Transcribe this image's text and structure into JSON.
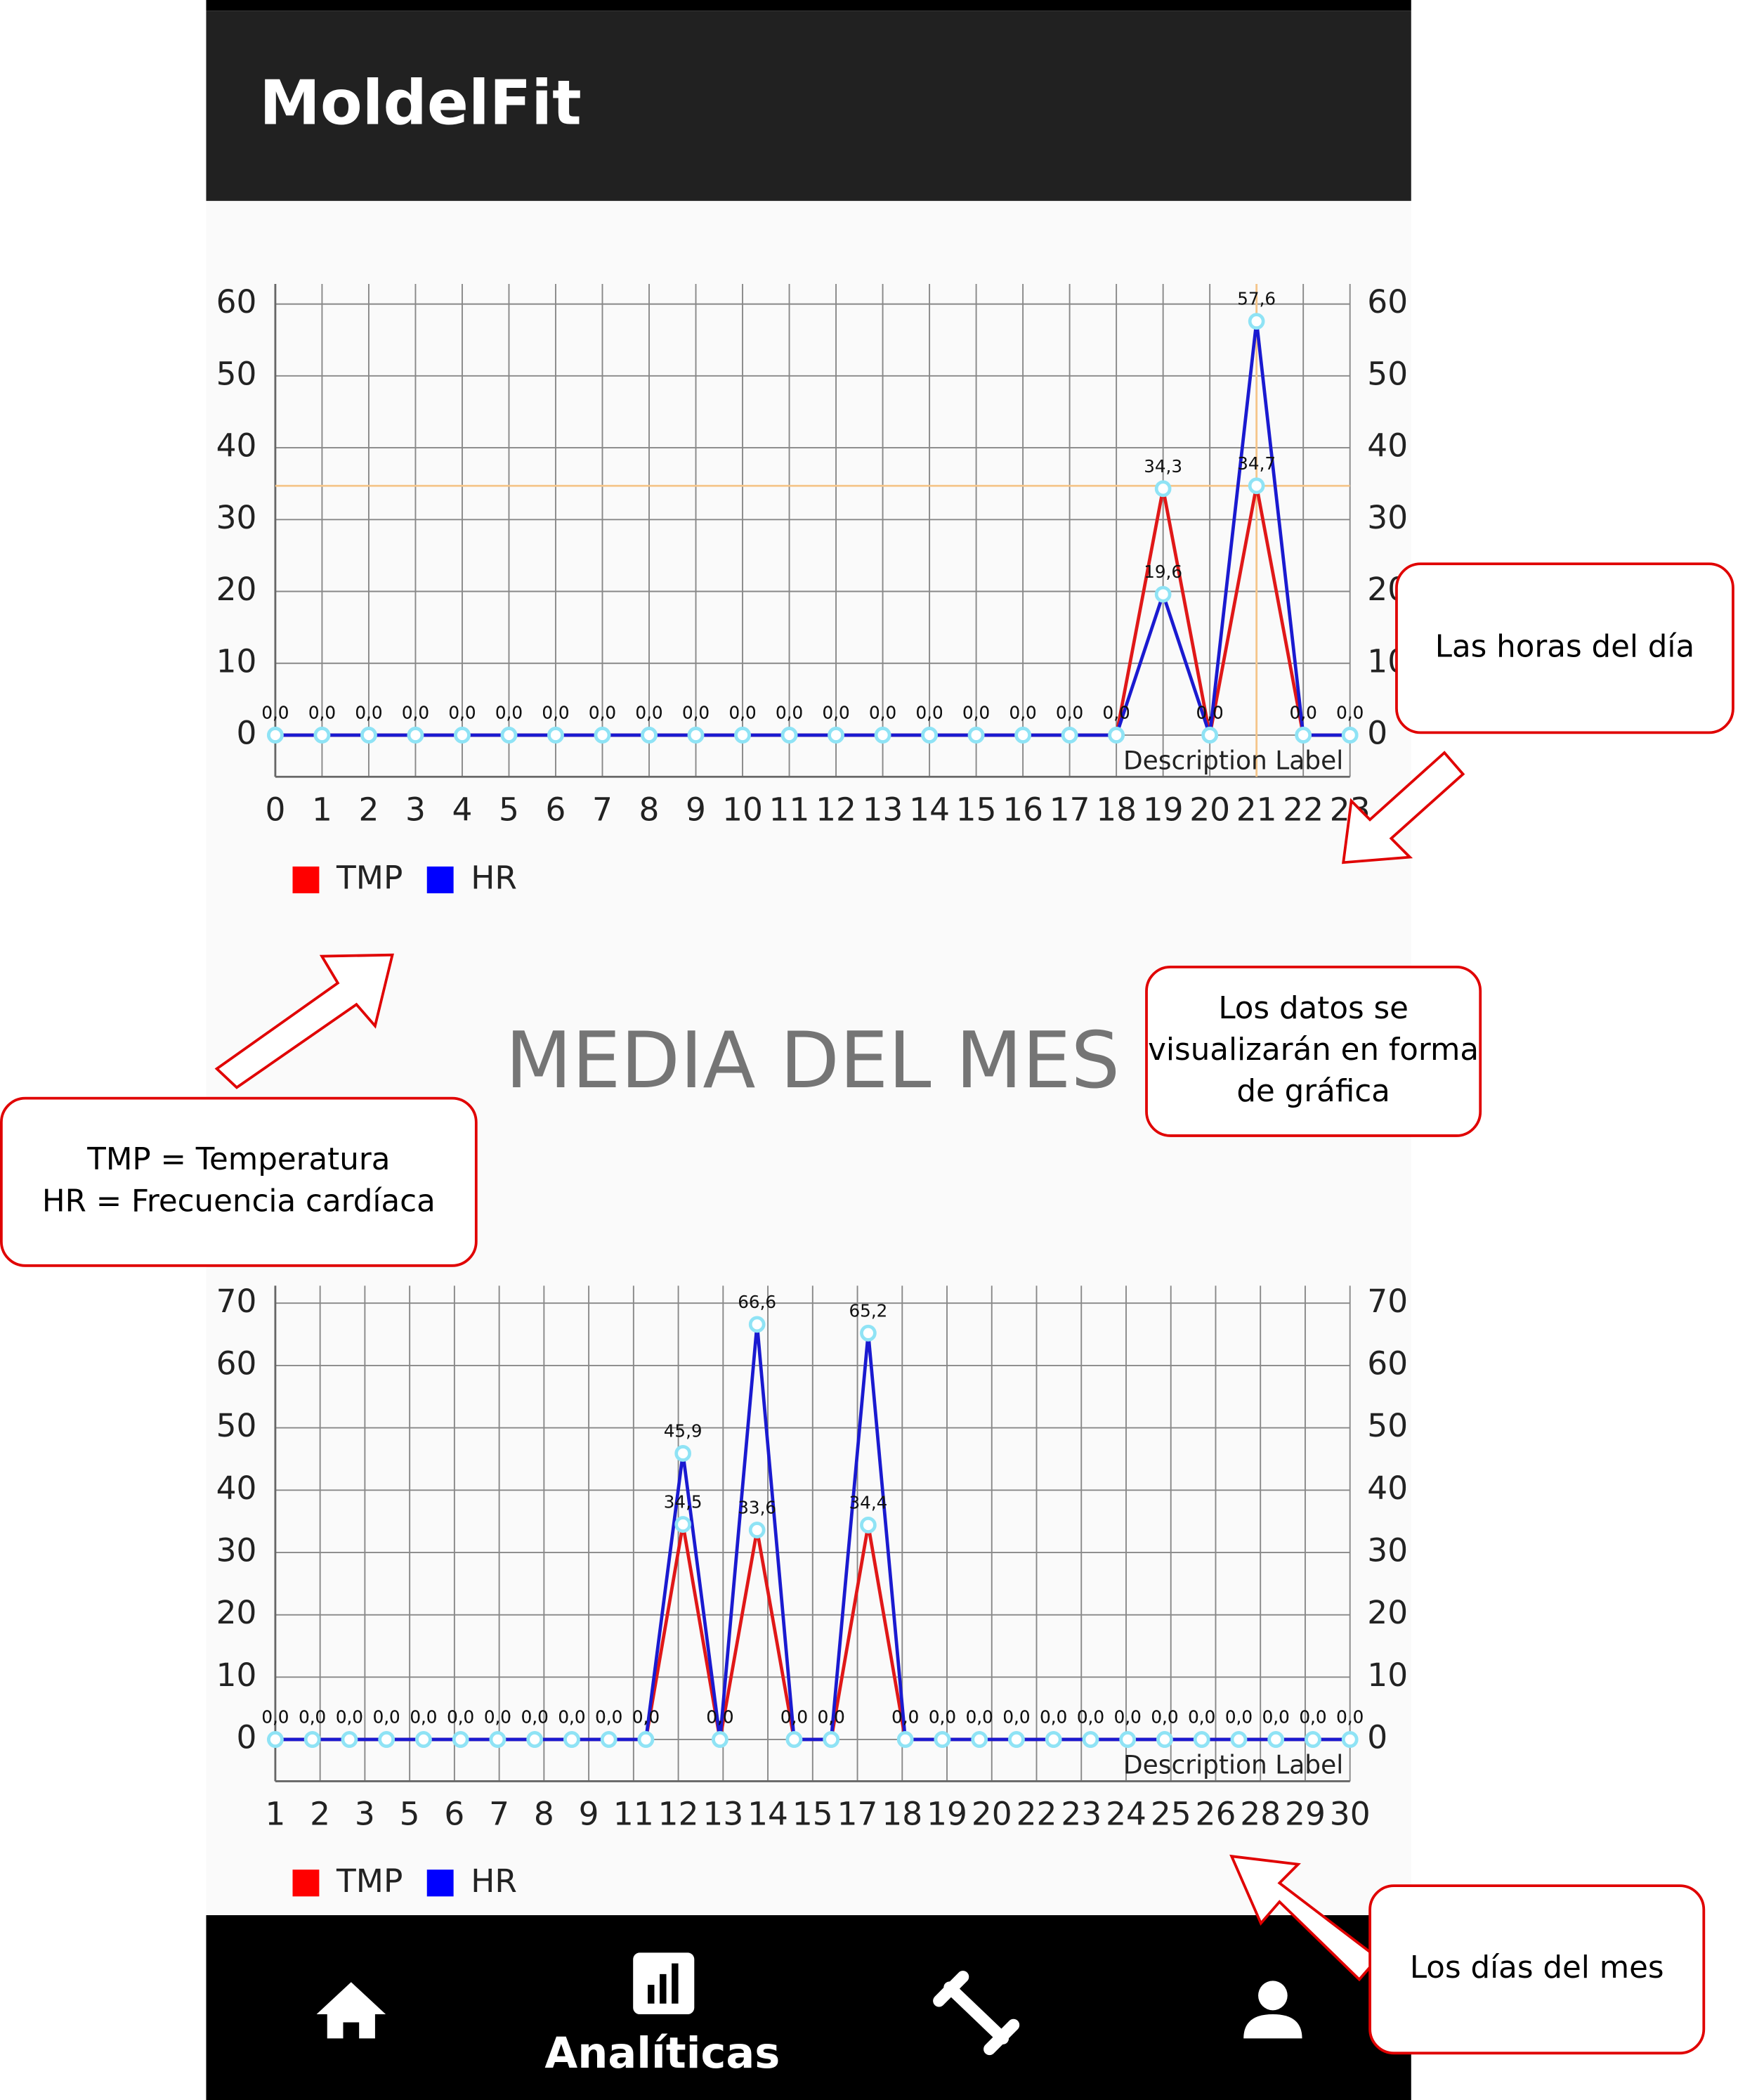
{
  "app_bar": {
    "title": "MoldelFit"
  },
  "section_title": "MEDIA DEL MES",
  "chart_data": [
    {
      "type": "line",
      "description": "Description Label",
      "xlim": [
        0,
        23
      ],
      "xticks": [
        0,
        1,
        2,
        3,
        4,
        5,
        6,
        7,
        8,
        9,
        10,
        11,
        12,
        13,
        14,
        15,
        16,
        17,
        18,
        19,
        20,
        21,
        22,
        23
      ],
      "ylim": [
        -5.8,
        62.8
      ],
      "yticks": [
        0,
        10,
        20,
        30,
        40,
        50,
        60
      ],
      "grid": true,
      "highlight": {
        "series": 0,
        "index": 21
      },
      "series": [
        {
          "name": "TMP",
          "color": "#ff0000",
          "values": [
            0,
            0,
            0,
            0,
            0,
            0,
            0,
            0,
            0,
            0,
            0,
            0,
            0,
            0,
            0,
            0,
            0,
            0,
            0,
            34.3,
            0,
            34.7,
            0,
            0
          ],
          "value_labels": [
            "0,0",
            "0,0",
            "0,0",
            "0,0",
            "0,0",
            "0,0",
            "0,0",
            "0,0",
            "0,0",
            "0,0",
            "0,0",
            "0,0",
            "0,0",
            "0,0",
            "0,0",
            "0,0",
            "0,0",
            "0,0",
            "0,0",
            "34,3",
            "0,0",
            "34,7",
            "0,0",
            "0,0"
          ]
        },
        {
          "name": "HR",
          "color": "#0000ff",
          "values": [
            0,
            0,
            0,
            0,
            0,
            0,
            0,
            0,
            0,
            0,
            0,
            0,
            0,
            0,
            0,
            0,
            0,
            0,
            0,
            19.6,
            0,
            57.6,
            0,
            0
          ],
          "value_labels": [
            "0,0",
            "0,0",
            "0,0",
            "0,0",
            "0,0",
            "0,0",
            "0,0",
            "0,0",
            "0,0",
            "0,0",
            "0,0",
            "0,0",
            "0,0",
            "0,0",
            "0,0",
            "0,0",
            "0,0",
            "0,0",
            "0,0",
            "19,6",
            "0,0",
            "57,6",
            "0,0",
            "0,0"
          ]
        }
      ]
    },
    {
      "type": "line",
      "description": "Description Label",
      "xlim": [
        0,
        29
      ],
      "xticks": [
        {
          "value": 0,
          "label": "1"
        },
        {
          "value": 1.2083,
          "label": "2"
        },
        {
          "value": 2.4167,
          "label": "3"
        },
        {
          "value": 3.625,
          "label": "5"
        },
        {
          "value": 4.8333,
          "label": "6"
        },
        {
          "value": 6.0417,
          "label": "7"
        },
        {
          "value": 7.25,
          "label": "8"
        },
        {
          "value": 8.4583,
          "label": "9"
        },
        {
          "value": 9.6667,
          "label": "11"
        },
        {
          "value": 10.875,
          "label": "12"
        },
        {
          "value": 12.0833,
          "label": "13"
        },
        {
          "value": 13.2917,
          "label": "14"
        },
        {
          "value": 14.5,
          "label": "15"
        },
        {
          "value": 15.7083,
          "label": "17"
        },
        {
          "value": 16.9167,
          "label": "18"
        },
        {
          "value": 18.125,
          "label": "19"
        },
        {
          "value": 19.3333,
          "label": "20"
        },
        {
          "value": 20.5417,
          "label": "22"
        },
        {
          "value": 21.75,
          "label": "23"
        },
        {
          "value": 22.9583,
          "label": "24"
        },
        {
          "value": 24.1667,
          "label": "25"
        },
        {
          "value": 25.375,
          "label": "26"
        },
        {
          "value": 26.5833,
          "label": "28"
        },
        {
          "value": 27.7917,
          "label": "29"
        },
        {
          "value": 29,
          "label": "30"
        }
      ],
      "ylim": [
        -6.7,
        72.8
      ],
      "yticks": [
        0,
        10,
        20,
        30,
        40,
        50,
        60,
        70
      ],
      "grid": true,
      "series": [
        {
          "name": "TMP",
          "color": "#ff0000",
          "values": [
            0,
            0,
            0,
            0,
            0,
            0,
            0,
            0,
            0,
            0,
            0,
            34.5,
            0,
            33.6,
            0,
            0,
            34.4,
            0,
            0,
            0,
            0,
            0,
            0,
            0,
            0,
            0,
            0,
            0,
            0,
            0
          ],
          "value_labels": [
            "0,0",
            "0,0",
            "0,0",
            "0,0",
            "0,0",
            "0,0",
            "0,0",
            "0,0",
            "0,0",
            "0,0",
            "0,0",
            "34,5",
            "0,0",
            "33,6",
            "0,0",
            "0,0",
            "34,4",
            "0,0",
            "0,0",
            "0,0",
            "0,0",
            "0,0",
            "0,0",
            "0,0",
            "0,0",
            "0,0",
            "0,0",
            "0,0",
            "0,0",
            "0,0"
          ]
        },
        {
          "name": "HR",
          "color": "#0000ff",
          "values": [
            0,
            0,
            0,
            0,
            0,
            0,
            0,
            0,
            0,
            0,
            0,
            45.9,
            0,
            66.6,
            0,
            0,
            65.2,
            0,
            0,
            0,
            0,
            0,
            0,
            0,
            0,
            0,
            0,
            0,
            0,
            0
          ],
          "value_labels": [
            "0,0",
            "0,0",
            "0,0",
            "0,0",
            "0,0",
            "0,0",
            "0,0",
            "0,0",
            "0,0",
            "0,0",
            "0,0",
            "45,9",
            "0,0",
            "66,6",
            "0,0",
            "0,0",
            "65,2",
            "0,0",
            "0,0",
            "0,0",
            "0,0",
            "0,0",
            "0,0",
            "0,0",
            "0,0",
            "0,0",
            "0,0",
            "0,0",
            "0,0",
            "0,0"
          ]
        }
      ]
    }
  ],
  "nav": {
    "active_label": "Analíticas"
  },
  "annotations": [
    {
      "lines": [
        "Las horas del día"
      ]
    },
    {
      "lines": [
        "Los datos se",
        "visualizarán en forma",
        "de gráfica"
      ]
    },
    {
      "lines": [
        "TMP = Temperatura",
        "HR = Frecuencia cardíaca"
      ]
    },
    {
      "lines": [
        "Los días del mes"
      ]
    }
  ]
}
